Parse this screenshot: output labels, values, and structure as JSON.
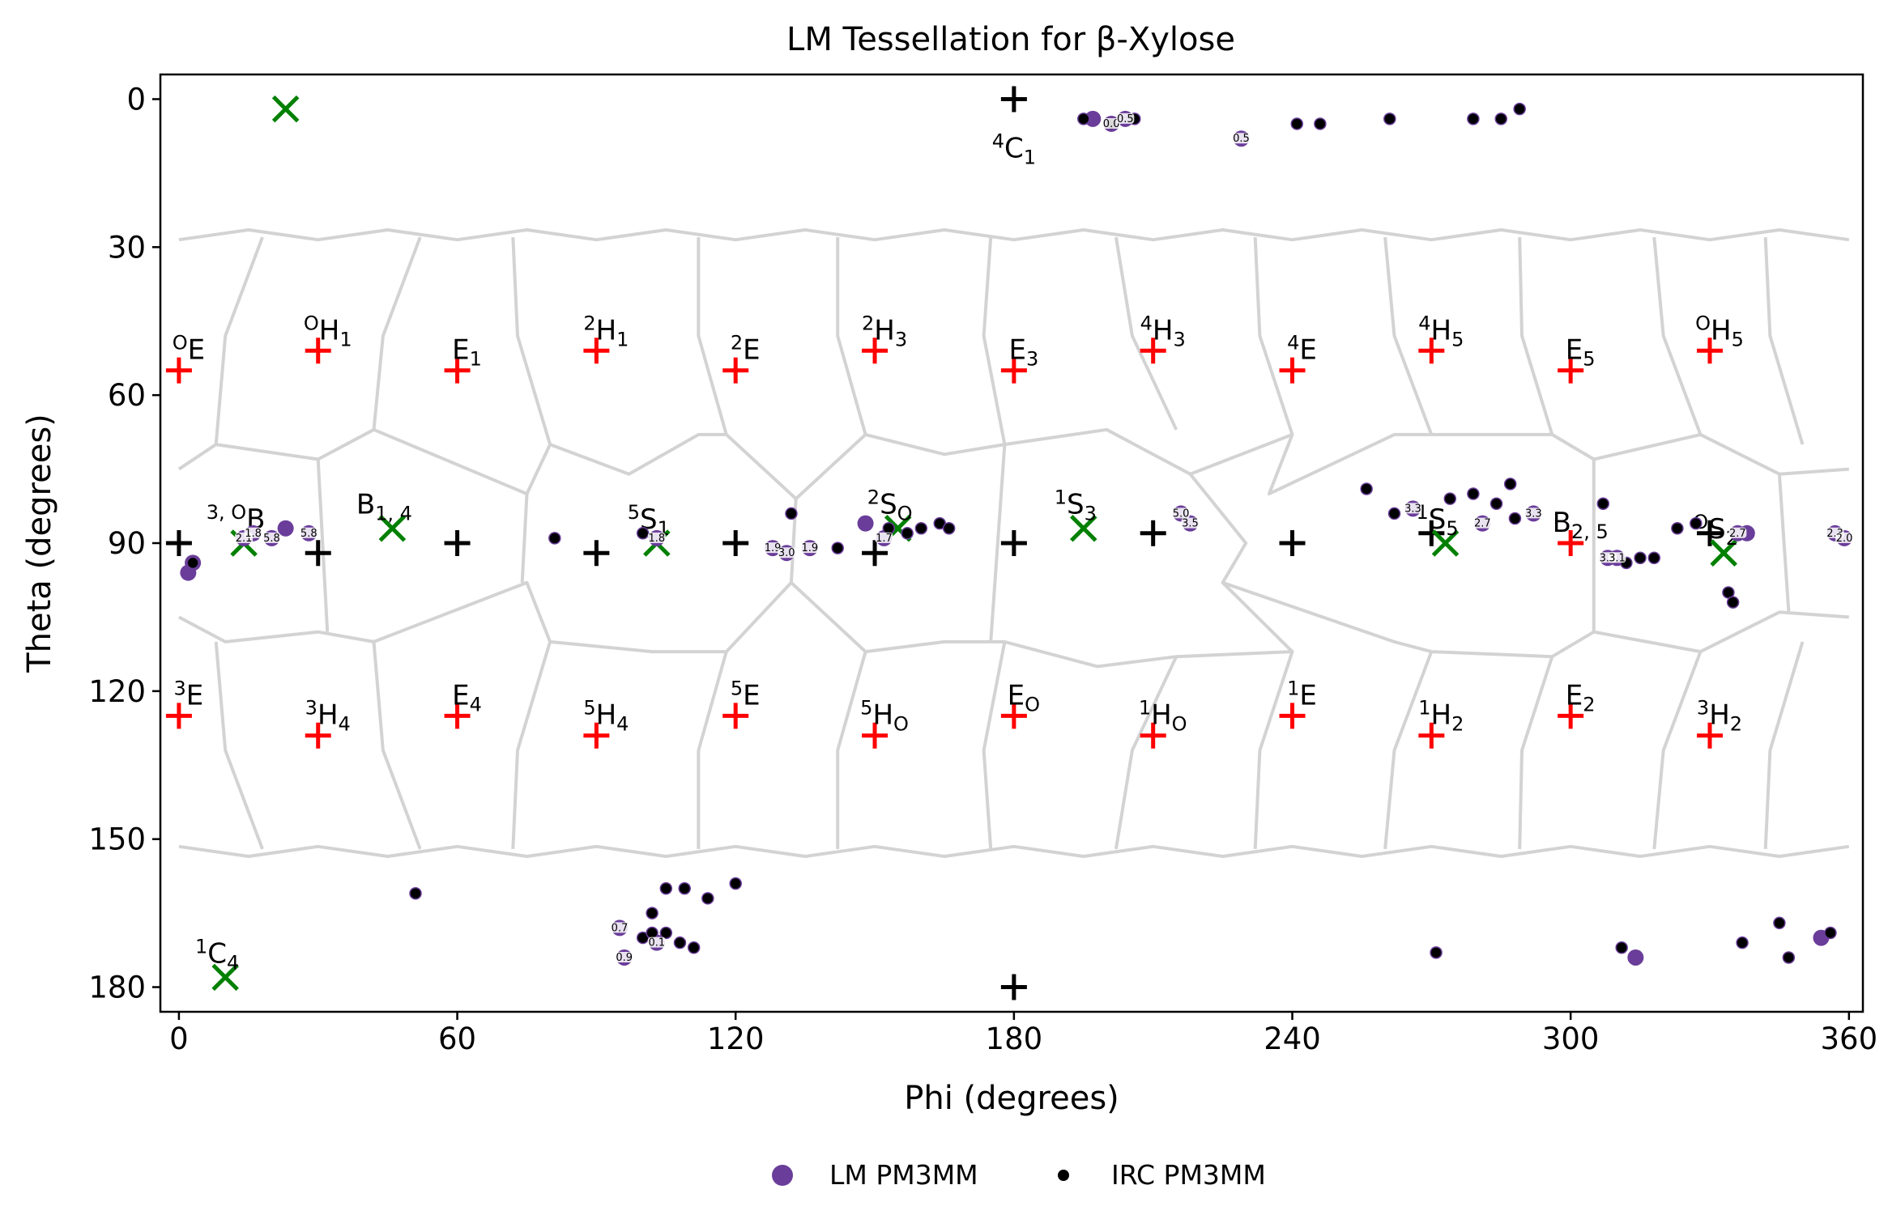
{
  "chart_data": {
    "type": "scatter",
    "title": "LM Tessellation for β-Xylose",
    "xlabel": "Phi (degrees)",
    "ylabel": "Theta (degrees)",
    "xlim": [
      -4,
      363
    ],
    "ylim": [
      185,
      -5
    ],
    "y_inverted": true,
    "xticks": [
      0,
      60,
      120,
      180,
      240,
      300,
      360
    ],
    "yticks": [
      0,
      30,
      60,
      90,
      120,
      150,
      180
    ],
    "grid": false,
    "legend": {
      "placement": "bottom-center",
      "entries": [
        {
          "label": "LM PM3MM",
          "marker": "circle",
          "color": "#6a3d9a"
        },
        {
          "label": "IRC PM3MM",
          "marker": "dot",
          "color": "#000000"
        }
      ]
    },
    "colors": {
      "canonical_black": "#000000",
      "canonical_red": "#ff0000",
      "canonical_green": "#008000",
      "tessellation": "#d3d3d3",
      "lm": "#6a3d9a",
      "irc": "#000000",
      "axes": "#000000"
    },
    "tessellation": {
      "upper_boundary": [
        [
          0,
          28
        ],
        [
          360,
          28
        ]
      ],
      "lower_boundary": [
        [
          0,
          152
        ],
        [
          360,
          152
        ]
      ],
      "upper_band_cells_x": [
        0,
        30,
        60,
        90,
        120,
        150,
        180,
        210,
        240,
        270,
        300,
        330,
        360
      ],
      "lower_band_cells_x": [
        0,
        30,
        60,
        90,
        120,
        150,
        180,
        210,
        240,
        270,
        300,
        330,
        360
      ]
    },
    "canonical_black": [
      {
        "phi": 180,
        "theta": 0,
        "label": "4C1",
        "sup": "4",
        "base": "C",
        "sub": "1"
      },
      {
        "phi": 180,
        "theta": 180,
        "label": "",
        "sup": "",
        "base": "",
        "sub": ""
      },
      {
        "phi": 0,
        "theta": 90,
        "label": "",
        "sup": "",
        "base": "",
        "sub": ""
      },
      {
        "phi": 30,
        "theta": 92,
        "label": "",
        "sup": "",
        "base": "",
        "sub": ""
      },
      {
        "phi": 60,
        "theta": 90,
        "label": "",
        "sup": "",
        "base": "",
        "sub": ""
      },
      {
        "phi": 90,
        "theta": 92,
        "label": "",
        "sup": "",
        "base": "",
        "sub": ""
      },
      {
        "phi": 120,
        "theta": 90,
        "label": "",
        "sup": "",
        "base": "",
        "sub": ""
      },
      {
        "phi": 150,
        "theta": 92,
        "label": "",
        "sup": "",
        "base": "",
        "sub": ""
      },
      {
        "phi": 180,
        "theta": 90,
        "label": "",
        "sup": "",
        "base": "",
        "sub": ""
      },
      {
        "phi": 210,
        "theta": 88,
        "label": "",
        "sup": "",
        "base": "",
        "sub": ""
      },
      {
        "phi": 240,
        "theta": 90,
        "label": "",
        "sup": "",
        "base": "",
        "sub": ""
      },
      {
        "phi": 270,
        "theta": 88,
        "label": "",
        "sup": "",
        "base": "",
        "sub": ""
      },
      {
        "phi": 330,
        "theta": 88,
        "label": "",
        "sup": "",
        "base": "",
        "sub": ""
      }
    ],
    "canonical_red": [
      {
        "phi": 0,
        "theta": 55,
        "sup": "O",
        "base": "E",
        "sub": ""
      },
      {
        "phi": 30,
        "theta": 51,
        "sup": "O",
        "base": "H",
        "sub": "1"
      },
      {
        "phi": 60,
        "theta": 55,
        "sup": "",
        "base": "E",
        "sub": "1"
      },
      {
        "phi": 90,
        "theta": 51,
        "sup": "2",
        "base": "H",
        "sub": "1"
      },
      {
        "phi": 120,
        "theta": 55,
        "sup": "2",
        "base": "E",
        "sub": ""
      },
      {
        "phi": 150,
        "theta": 51,
        "sup": "2",
        "base": "H",
        "sub": "3"
      },
      {
        "phi": 180,
        "theta": 55,
        "sup": "",
        "base": "E",
        "sub": "3"
      },
      {
        "phi": 210,
        "theta": 51,
        "sup": "4",
        "base": "H",
        "sub": "3"
      },
      {
        "phi": 240,
        "theta": 55,
        "sup": "4",
        "base": "E",
        "sub": ""
      },
      {
        "phi": 270,
        "theta": 51,
        "sup": "4",
        "base": "H",
        "sub": "5"
      },
      {
        "phi": 300,
        "theta": 55,
        "sup": "",
        "base": "E",
        "sub": "5"
      },
      {
        "phi": 330,
        "theta": 51,
        "sup": "O",
        "base": "H",
        "sub": "5"
      },
      {
        "phi": 0,
        "theta": 125,
        "sup": "3",
        "base": "E",
        "sub": ""
      },
      {
        "phi": 30,
        "theta": 129,
        "sup": "3",
        "base": "H",
        "sub": "4"
      },
      {
        "phi": 60,
        "theta": 125,
        "sup": "",
        "base": "E",
        "sub": "4"
      },
      {
        "phi": 90,
        "theta": 129,
        "sup": "5",
        "base": "H",
        "sub": "4"
      },
      {
        "phi": 120,
        "theta": 125,
        "sup": "5",
        "base": "E",
        "sub": ""
      },
      {
        "phi": 150,
        "theta": 129,
        "sup": "5",
        "base": "H",
        "sub": "O"
      },
      {
        "phi": 180,
        "theta": 125,
        "sup": "",
        "base": "E",
        "sub": "O"
      },
      {
        "phi": 210,
        "theta": 129,
        "sup": "1",
        "base": "H",
        "sub": "O"
      },
      {
        "phi": 240,
        "theta": 125,
        "sup": "1",
        "base": "E",
        "sub": ""
      },
      {
        "phi": 270,
        "theta": 129,
        "sup": "1",
        "base": "H",
        "sub": "2"
      },
      {
        "phi": 300,
        "theta": 125,
        "sup": "",
        "base": "E",
        "sub": "2"
      },
      {
        "phi": 330,
        "theta": 129,
        "sup": "3",
        "base": "H",
        "sub": "2"
      },
      {
        "phi": 300,
        "theta": 90,
        "sup": "",
        "base": "B",
        "sub": "2, 5"
      }
    ],
    "canonical_green": [
      {
        "phi": 23,
        "theta": 2,
        "sup": "",
        "base": "",
        "sub": ""
      },
      {
        "phi": 10,
        "theta": 178,
        "sup": "1",
        "base": "C",
        "sub": "4"
      },
      {
        "phi": 14,
        "theta": 90,
        "sup": "3, O",
        "base": "B",
        "sub": ""
      },
      {
        "phi": 46,
        "theta": 87,
        "sup": "",
        "base": "B",
        "sub": "1, 4"
      },
      {
        "phi": 103,
        "theta": 90,
        "sup": "5",
        "base": "S",
        "sub": "1"
      },
      {
        "phi": 155,
        "theta": 87,
        "sup": "2",
        "base": "S",
        "sub": "O"
      },
      {
        "phi": 195,
        "theta": 87,
        "sup": "1",
        "base": "S",
        "sub": "3"
      },
      {
        "phi": 273,
        "theta": 90,
        "sup": "1",
        "base": "S",
        "sub": "5"
      },
      {
        "phi": 333,
        "theta": 92,
        "sup": "O",
        "base": "S",
        "sub": "2"
      }
    ],
    "lm_points": [
      {
        "phi": 197,
        "theta": 4,
        "label": ""
      },
      {
        "phi": 201,
        "theta": 5,
        "label": "0.0"
      },
      {
        "phi": 204,
        "theta": 4,
        "label": "0.5"
      },
      {
        "phi": 229,
        "theta": 8,
        "label": "0.5"
      },
      {
        "phi": 2,
        "theta": 96,
        "label": ""
      },
      {
        "phi": 3,
        "theta": 94,
        "label": ""
      },
      {
        "phi": 14,
        "theta": 89,
        "label": "2.1"
      },
      {
        "phi": 16,
        "theta": 88,
        "label": "1.8"
      },
      {
        "phi": 20,
        "theta": 89,
        "label": "5.8"
      },
      {
        "phi": 23,
        "theta": 87,
        "label": ""
      },
      {
        "phi": 28,
        "theta": 88,
        "label": "5.8"
      },
      {
        "phi": 103,
        "theta": 89,
        "label": "1.8"
      },
      {
        "phi": 128,
        "theta": 91,
        "label": "1.9"
      },
      {
        "phi": 131,
        "theta": 92,
        "label": "3.0"
      },
      {
        "phi": 136,
        "theta": 91,
        "label": "1.9"
      },
      {
        "phi": 148,
        "theta": 86,
        "label": ""
      },
      {
        "phi": 152,
        "theta": 89,
        "label": "1.7"
      },
      {
        "phi": 216,
        "theta": 84,
        "label": "5.0"
      },
      {
        "phi": 218,
        "theta": 86,
        "label": "3.5"
      },
      {
        "phi": 266,
        "theta": 83,
        "label": "3.3"
      },
      {
        "phi": 281,
        "theta": 86,
        "label": "2.7"
      },
      {
        "phi": 292,
        "theta": 84,
        "label": "3.3"
      },
      {
        "phi": 308,
        "theta": 93,
        "label": "3.3"
      },
      {
        "phi": 310,
        "theta": 93,
        "label": "3.1"
      },
      {
        "phi": 336,
        "theta": 88,
        "label": "2.7"
      },
      {
        "phi": 338,
        "theta": 88,
        "label": ""
      },
      {
        "phi": 357,
        "theta": 88,
        "label": "2.3"
      },
      {
        "phi": 359,
        "theta": 89,
        "label": "2.0"
      },
      {
        "phi": 95,
        "theta": 168,
        "label": "0.7"
      },
      {
        "phi": 96,
        "theta": 174,
        "label": "0.9"
      },
      {
        "phi": 103,
        "theta": 171,
        "label": "0.1"
      },
      {
        "phi": 314,
        "theta": 174,
        "label": ""
      },
      {
        "phi": 354,
        "theta": 170,
        "label": ""
      }
    ],
    "irc_points": [
      {
        "phi": 195,
        "theta": 4
      },
      {
        "phi": 201,
        "theta": 5
      },
      {
        "phi": 206,
        "theta": 4
      },
      {
        "phi": 241,
        "theta": 5
      },
      {
        "phi": 246,
        "theta": 5
      },
      {
        "phi": 261,
        "theta": 4
      },
      {
        "phi": 279,
        "theta": 4
      },
      {
        "phi": 285,
        "theta": 4
      },
      {
        "phi": 289,
        "theta": 2
      },
      {
        "phi": 3,
        "theta": 94
      },
      {
        "phi": 81,
        "theta": 89
      },
      {
        "phi": 100,
        "theta": 88
      },
      {
        "phi": 132,
        "theta": 84
      },
      {
        "phi": 142,
        "theta": 91
      },
      {
        "phi": 153,
        "theta": 87
      },
      {
        "phi": 157,
        "theta": 88
      },
      {
        "phi": 160,
        "theta": 87
      },
      {
        "phi": 164,
        "theta": 86
      },
      {
        "phi": 166,
        "theta": 87
      },
      {
        "phi": 256,
        "theta": 79
      },
      {
        "phi": 262,
        "theta": 84
      },
      {
        "phi": 274,
        "theta": 81
      },
      {
        "phi": 279,
        "theta": 80
      },
      {
        "phi": 284,
        "theta": 82
      },
      {
        "phi": 287,
        "theta": 78
      },
      {
        "phi": 288,
        "theta": 85
      },
      {
        "phi": 307,
        "theta": 82
      },
      {
        "phi": 312,
        "theta": 94
      },
      {
        "phi": 315,
        "theta": 93
      },
      {
        "phi": 318,
        "theta": 93
      },
      {
        "phi": 323,
        "theta": 87
      },
      {
        "phi": 327,
        "theta": 86
      },
      {
        "phi": 334,
        "theta": 100
      },
      {
        "phi": 335,
        "theta": 102
      },
      {
        "phi": 51,
        "theta": 161
      },
      {
        "phi": 100,
        "theta": 170
      },
      {
        "phi": 102,
        "theta": 165
      },
      {
        "phi": 102,
        "theta": 169
      },
      {
        "phi": 105,
        "theta": 160
      },
      {
        "phi": 105,
        "theta": 169
      },
      {
        "phi": 108,
        "theta": 171
      },
      {
        "phi": 109,
        "theta": 160
      },
      {
        "phi": 111,
        "theta": 172
      },
      {
        "phi": 114,
        "theta": 162
      },
      {
        "phi": 120,
        "theta": 159
      },
      {
        "phi": 271,
        "theta": 173
      },
      {
        "phi": 311,
        "theta": 172
      },
      {
        "phi": 337,
        "theta": 171
      },
      {
        "phi": 345,
        "theta": 167
      },
      {
        "phi": 347,
        "theta": 174
      },
      {
        "phi": 356,
        "theta": 169
      }
    ]
  }
}
